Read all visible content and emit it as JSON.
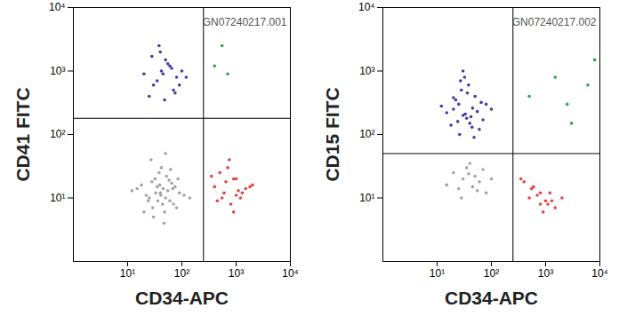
{
  "chart_data": [
    {
      "type": "scatter",
      "annotation": "GN07240217.001",
      "x_label": "CD34-APC",
      "y_label": "CD41 FITC",
      "log": true,
      "xlim": [
        1,
        10000
      ],
      "ylim": [
        1,
        10000
      ],
      "xticks": [
        {
          "value": 10,
          "label": "10¹"
        },
        {
          "value": 100,
          "label": "10²"
        },
        {
          "value": 1000,
          "label": "10³"
        },
        {
          "value": 10000,
          "label": "10⁴"
        }
      ],
      "yticks": [
        {
          "value": 10,
          "label": "10¹"
        },
        {
          "value": 100,
          "label": "10²"
        },
        {
          "value": 1000,
          "label": "10³"
        },
        {
          "value": 10000,
          "label": "10⁴"
        }
      ],
      "gate_x": 250,
      "gate_y": 180,
      "series": [
        {
          "color": "#9a9a9a",
          "x": [
            40,
            35,
            50,
            28,
            60,
            45,
            22,
            70,
            32,
            55,
            18,
            80,
            38,
            48,
            25,
            65,
            42,
            30,
            90,
            15,
            52,
            36,
            110,
            27,
            44,
            58,
            20,
            75,
            33,
            47,
            140,
            12,
            62,
            39,
            24,
            85,
            50,
            29,
            41,
            68
          ],
          "y": [
            12,
            15,
            10,
            18,
            9,
            14,
            11,
            8,
            20,
            13,
            16,
            7,
            25,
            6,
            10,
            17,
            30,
            5,
            12,
            14,
            22,
            9,
            11,
            40,
            8,
            19,
            6,
            15,
            12,
            4,
            10,
            13,
            28,
            16,
            9,
            20,
            50,
            7,
            11,
            14
          ]
        },
        {
          "color": "#2a2a9c",
          "x": [
            30,
            45,
            60,
            25,
            80,
            50,
            35,
            100,
            40,
            70,
            20,
            55,
            90,
            38,
            65,
            48,
            120,
            28,
            75,
            42
          ],
          "y": [
            600,
            900,
            1200,
            400,
            800,
            1500,
            700,
            1000,
            2000,
            500,
            900,
            1300,
            600,
            2500,
            1100,
            350,
            800,
            1700,
            450,
            1000
          ]
        },
        {
          "color": "#e03030",
          "x": [
            400,
            600,
            900,
            1200,
            500,
            800,
            1500,
            700,
            1000,
            2000,
            450,
            650,
            1100,
            350,
            900,
            1300,
            750,
            550,
            1800,
            1000
          ],
          "y": [
            15,
            12,
            20,
            10,
            25,
            8,
            14,
            30,
            11,
            16,
            9,
            18,
            13,
            22,
            6,
            12,
            40,
            10,
            15,
            20
          ]
        },
        {
          "color": "#1a9a3a",
          "x": [
            400,
            700,
            550
          ],
          "y": [
            1200,
            900,
            2500
          ]
        }
      ]
    },
    {
      "type": "scatter",
      "annotation": "GN07240217.002",
      "x_label": "CD34-APC",
      "y_label": "CD15 FITC",
      "log": true,
      "xlim": [
        1,
        10000
      ],
      "ylim": [
        1,
        10000
      ],
      "xticks": [
        {
          "value": 10,
          "label": "10¹"
        },
        {
          "value": 100,
          "label": "10²"
        },
        {
          "value": 1000,
          "label": "10³"
        },
        {
          "value": 10000,
          "label": "10⁴"
        }
      ],
      "yticks": [
        {
          "value": 10,
          "label": "10¹"
        },
        {
          "value": 100,
          "label": "10²"
        },
        {
          "value": 1000,
          "label": "10³"
        },
        {
          "value": 10000,
          "label": "10⁴"
        }
      ],
      "gate_x": 250,
      "gate_y": 50,
      "series": [
        {
          "color": "#2a2a9c",
          "x": [
            30,
            25,
            40,
            20,
            50,
            35,
            15,
            60,
            28,
            45,
            22,
            70,
            32,
            18,
            55,
            38,
            26,
            80,
            42,
            30,
            12,
            48,
            36,
            24,
            65,
            33,
            100,
            27,
            44,
            20
          ],
          "y": [
            200,
            300,
            150,
            250,
            400,
            180,
            220,
            120,
            500,
            260,
            350,
            170,
            800,
            140,
            230,
            600,
            100,
            300,
            190,
            1000,
            280,
            90,
            450,
            160,
            320,
            210,
            250,
            700,
            130,
            380
          ]
        },
        {
          "color": "#9a9a9a",
          "x": [
            30,
            45,
            20,
            60,
            35,
            80,
            25,
            50,
            15,
            40,
            100,
            28,
            70,
            38,
            55
          ],
          "y": [
            20,
            15,
            25,
            18,
            30,
            12,
            14,
            22,
            16,
            35,
            20,
            10,
            28,
            24,
            13
          ]
        },
        {
          "color": "#e03030",
          "x": [
            500,
            800,
            1200,
            600,
            1000,
            400,
            1500,
            700,
            900,
            2000,
            550,
            1100,
            350,
            800,
            1300
          ],
          "y": [
            10,
            8,
            12,
            15,
            9,
            18,
            7,
            11,
            6,
            10,
            14,
            8,
            20,
            12,
            9
          ]
        },
        {
          "color": "#1a9a3a",
          "x": [
            500,
            1500,
            3000,
            8000,
            2500,
            6000
          ],
          "y": [
            400,
            800,
            150,
            1500,
            300,
            600
          ]
        }
      ]
    }
  ]
}
